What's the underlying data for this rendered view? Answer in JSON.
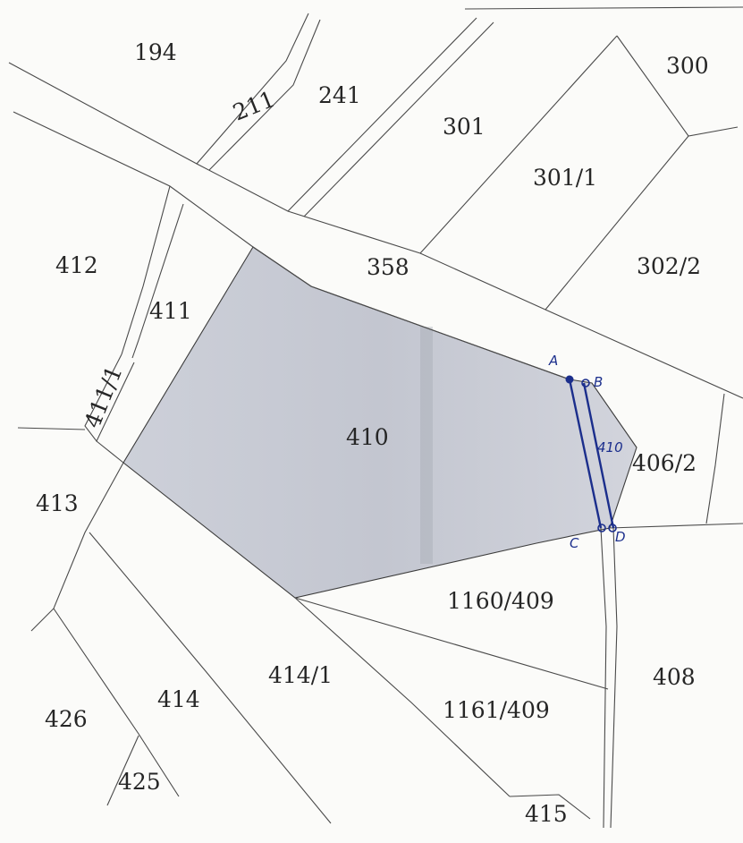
{
  "parcels": {
    "p194": "194",
    "p211": "211",
    "p241": "241",
    "p301": "301",
    "p300": "300",
    "p301_1": "301/1",
    "p412": "412",
    "p358": "358",
    "p302_2": "302/2",
    "p411": "411",
    "p411_1": "411/1",
    "p410": "410",
    "p406_2": "406/2",
    "p413": "413",
    "p1160_409": "1160/409",
    "p414_1": "414/1",
    "p408": "408",
    "p414": "414",
    "p1161_409": "1161/409",
    "p426": "426",
    "p425": "425",
    "p415": "415"
  },
  "annotations": {
    "point_a": "A",
    "point_b": "B",
    "point_c": "C",
    "point_d": "D",
    "strip_label": "410"
  },
  "colors": {
    "highlight_fill": "#c9ccd6",
    "line_color": "#4a4a4a",
    "pen_blue": "#1b2e8c"
  }
}
